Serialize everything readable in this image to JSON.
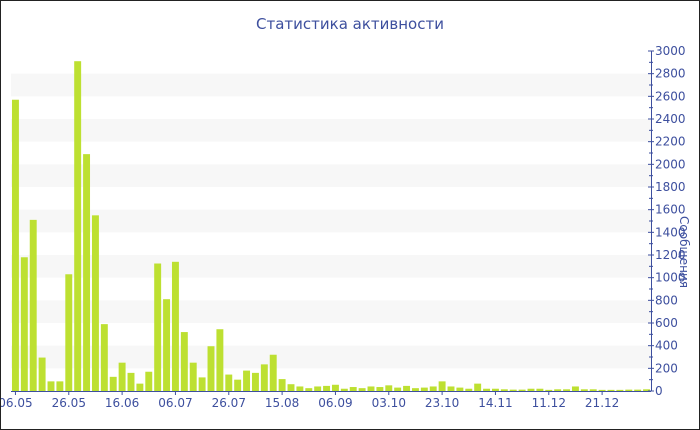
{
  "chart_data": {
    "type": "bar",
    "title": "Статистика активности",
    "ylabel": "Сообщения",
    "ylim": [
      0,
      3000
    ],
    "ytick_step": 200,
    "y_axis_side": "right",
    "grid": "alternating horizontal bands every 200",
    "bar_color": "#bde031",
    "band_color": "#f7f7f7",
    "axis_color": "#3d4f9e",
    "xtick_labels": [
      "06.05",
      "26.05",
      "16.06",
      "06.07",
      "26.07",
      "15.08",
      "06.09",
      "03.10",
      "23.10",
      "14.11",
      "11.12",
      "21.12"
    ],
    "xtick_every": 6,
    "values": [
      2570,
      1180,
      1510,
      295,
      85,
      85,
      1030,
      2910,
      2090,
      1550,
      590,
      125,
      250,
      160,
      65,
      170,
      1125,
      810,
      1140,
      520,
      250,
      120,
      395,
      545,
      145,
      100,
      180,
      160,
      235,
      320,
      105,
      60,
      40,
      25,
      40,
      45,
      55,
      20,
      35,
      25,
      40,
      35,
      50,
      30,
      45,
      25,
      30,
      40,
      85,
      40,
      30,
      20,
      65,
      20,
      20,
      15,
      12,
      12,
      20,
      20,
      10,
      15,
      15,
      40,
      15,
      15,
      10,
      10,
      10,
      12,
      12,
      15
    ]
  }
}
